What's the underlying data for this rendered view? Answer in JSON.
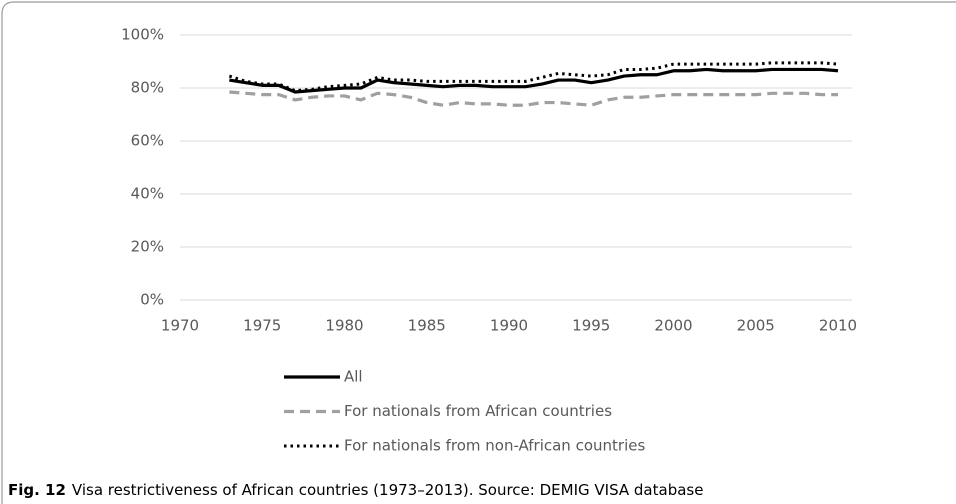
{
  "chart_data": {
    "type": "line",
    "x": [
      1973,
      1974,
      1975,
      1976,
      1977,
      1978,
      1979,
      1980,
      1981,
      1982,
      1983,
      1984,
      1985,
      1986,
      1987,
      1988,
      1989,
      1990,
      1991,
      1992,
      1993,
      1994,
      1995,
      1996,
      1997,
      1998,
      1999,
      2000,
      2001,
      2002,
      2003,
      2004,
      2005,
      2006,
      2007,
      2008,
      2009,
      2010
    ],
    "series": [
      {
        "name": "All",
        "color": "#000000",
        "line_style": "solid",
        "values": [
          83,
          82,
          81,
          81,
          78.5,
          79,
          79.5,
          80,
          80,
          83,
          82,
          81.5,
          81,
          80.5,
          81,
          81,
          80.5,
          80.5,
          80.5,
          81.5,
          83,
          83,
          82,
          83,
          84.5,
          85,
          85,
          86.5,
          86.5,
          87,
          86.5,
          86.5,
          86.5,
          87,
          87,
          87,
          87,
          86.5
        ]
      },
      {
        "name": "For nationals from African countries",
        "color": "#a0a0a0",
        "line_style": "dashed",
        "values": [
          78.5,
          78,
          77.5,
          77.5,
          75.5,
          76.5,
          77,
          77,
          75.5,
          78,
          77.5,
          76.5,
          74.5,
          73.5,
          74.5,
          74,
          74,
          73.5,
          73.5,
          74.5,
          74.5,
          74,
          73.5,
          75.5,
          76.5,
          76.5,
          77,
          77.5,
          77.5,
          77.5,
          77.5,
          77.5,
          77.5,
          78,
          78,
          78,
          77.5,
          77.5
        ]
      },
      {
        "name": "For nationals from non-African countries",
        "color": "#000000",
        "line_style": "dotted",
        "values": [
          84.5,
          82.5,
          81.5,
          81.5,
          79,
          79.5,
          80.5,
          81,
          81.5,
          84,
          83,
          83,
          82.5,
          82.5,
          82.5,
          82.5,
          82.5,
          82.5,
          82.5,
          84,
          85.5,
          85,
          84.5,
          85,
          87,
          87,
          87.5,
          89,
          89,
          89,
          89,
          89,
          89,
          89.5,
          89.5,
          89.5,
          89.5,
          89
        ]
      }
    ],
    "xlim": [
      1970,
      2010
    ],
    "xticks": [
      1970,
      1975,
      1980,
      1985,
      1990,
      1995,
      2000,
      2005,
      2010
    ],
    "ylim": [
      0,
      100
    ],
    "yticks": [
      {
        "value": 0,
        "label": "0%"
      },
      {
        "value": 20,
        "label": "20%"
      },
      {
        "value": 40,
        "label": "40%"
      },
      {
        "value": 60,
        "label": "60%"
      },
      {
        "value": 80,
        "label": "80%"
      },
      {
        "value": 100,
        "label": "100%"
      }
    ],
    "grid": true,
    "legend": "bottom"
  },
  "caption": {
    "label": "Fig. 12",
    "text": "Visa restrictiveness of African countries (1973–2013). Source: DEMIG VISA database"
  }
}
